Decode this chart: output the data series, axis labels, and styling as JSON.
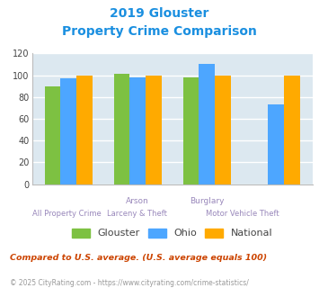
{
  "title_line1": "2019 Glouster",
  "title_line2": "Property Crime Comparison",
  "title_color": "#1a8fe0",
  "series": {
    "Glouster": [
      90,
      101,
      98,
      0
    ],
    "Ohio": [
      97,
      98,
      110,
      73
    ],
    "National": [
      100,
      100,
      100,
      100
    ]
  },
  "colors": {
    "Glouster": "#7dc142",
    "Ohio": "#4da6ff",
    "National": "#ffaa00"
  },
  "ylim": [
    0,
    120
  ],
  "yticks": [
    0,
    20,
    40,
    60,
    80,
    100,
    120
  ],
  "bg_color": "#dce8f0",
  "grid_color": "#ffffff",
  "footnote1": "Compared to U.S. average. (U.S. average equals 100)",
  "footnote2": "© 2025 CityRating.com - https://www.cityrating.com/crime-statistics/",
  "footnote1_color": "#cc4400",
  "footnote2_color": "#999999",
  "x_label_color": "#9988bb",
  "bar_width": 0.23,
  "n_groups": 4,
  "top_labels": [
    {
      "x": 1,
      "text": "Arson"
    },
    {
      "x": 2,
      "text": "Burglary"
    }
  ],
  "bot_labels": [
    {
      "x": 0,
      "text": "All Property Crime"
    },
    {
      "x": 1,
      "text": "Larceny & Theft"
    },
    {
      "x": 2.5,
      "text": "Motor Vehicle Theft"
    }
  ]
}
